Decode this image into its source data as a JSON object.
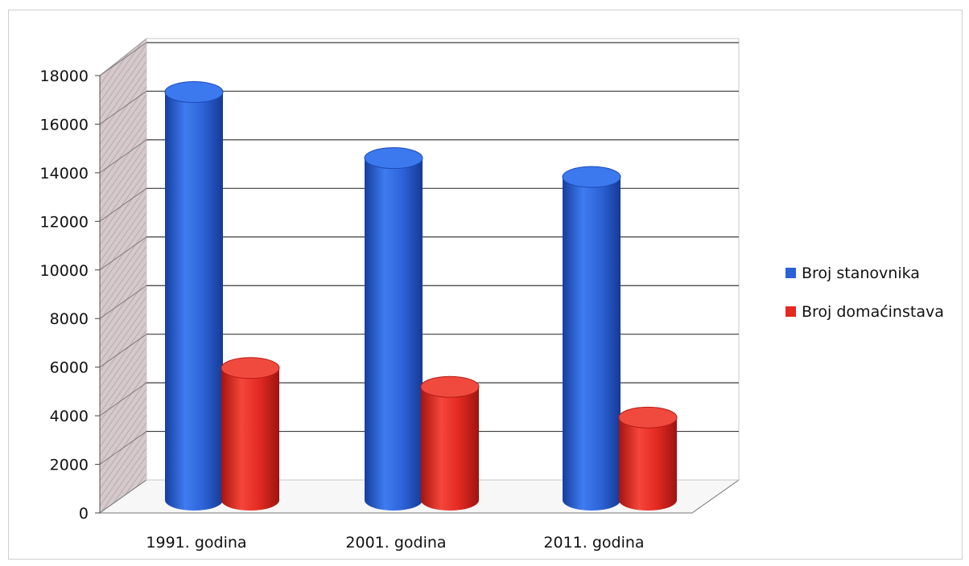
{
  "chart_data": {
    "type": "bar",
    "style": "3d-cylinder",
    "categories": [
      "1991. godina",
      "2001. godina",
      "2011. godina"
    ],
    "series": [
      {
        "name": "Broj stanovnika",
        "values": [
          17300,
          14500,
          13700
        ],
        "color": "#2b62d6"
      },
      {
        "name": "Broj domaćinstava",
        "values": [
          5600,
          4800,
          3500
        ],
        "color": "#e32a22"
      }
    ],
    "yticks": [
      "0",
      "2000",
      "4000",
      "6000",
      "8000",
      "10000",
      "12000",
      "14000",
      "16000",
      "18000"
    ],
    "ylim": [
      0,
      18000
    ],
    "grid": true,
    "legend_position": "right"
  }
}
